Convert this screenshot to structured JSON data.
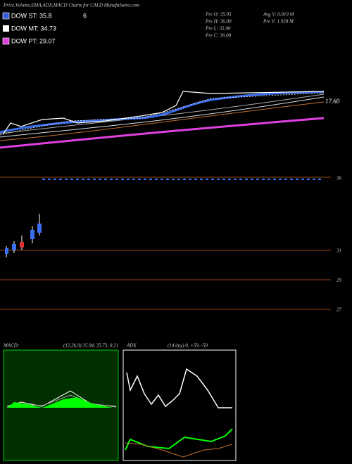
{
  "header": {
    "title": "Price,Volume,EMA,ADX,MACD Charts for CALD MunafaSutra.com"
  },
  "legend": {
    "items": [
      {
        "label": "DOW ST: 35.8",
        "color": "#3a5bd9"
      },
      {
        "label": "DOW MT: 34.73",
        "color": "#ffffff"
      },
      {
        "label": "DOW PT: 29.07",
        "color": "#e040e0"
      }
    ],
    "extra": "6"
  },
  "stats": {
    "left": [
      "Pre  O: 35.95",
      "Pre  H: 36.00",
      "Pre  L: 35.90",
      "Pre  C: 36.00"
    ],
    "right": [
      "Avg V: 0.019 M",
      "Pre  V: 1.928  M"
    ]
  },
  "price_panel": {
    "label": "17.60"
  },
  "candle_panel": {
    "levels": [
      "36",
      "31",
      "29",
      "27"
    ]
  },
  "macd": {
    "title": "MACD:",
    "params": "(12,26,9) 35.94, 35.73, 0.21"
  },
  "adx": {
    "title": "ADX",
    "params": "(14  day) 0, +59, -59"
  }
}
